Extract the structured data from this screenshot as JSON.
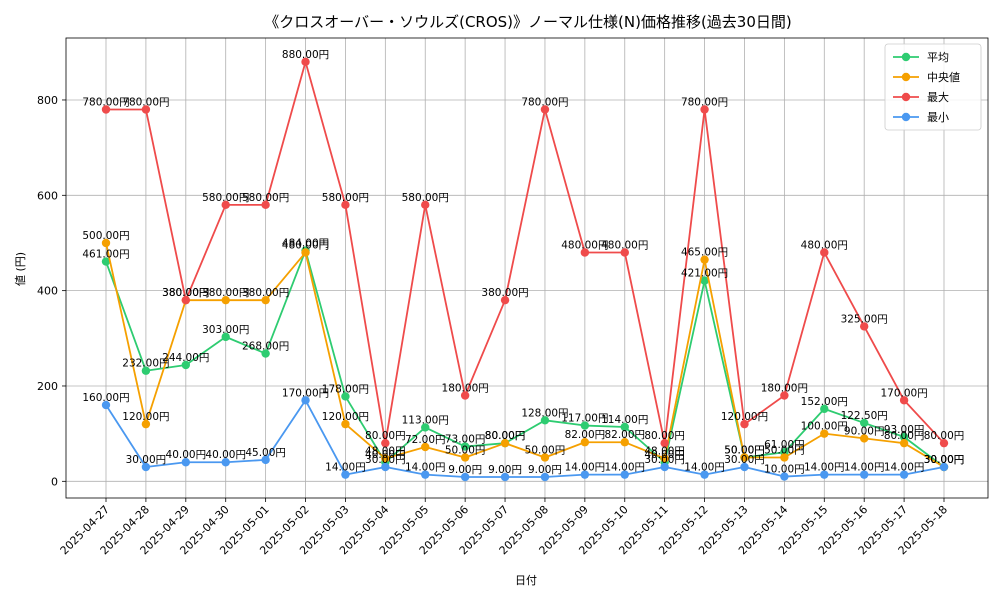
{
  "chart_data": {
    "type": "line",
    "title": "《クロスオーバー・ソウルズ(CROS)》ノーマル仕様(N)価格推移(過去30日間)",
    "xlabel": "日付",
    "ylabel": "値 (円)",
    "ylim": [
      -35,
      930
    ],
    "yticks": [
      0,
      200,
      400,
      600,
      800
    ],
    "grid": true,
    "legend_position": "top-right",
    "label_suffix": "円",
    "categories": [
      "2025-04-27",
      "2025-04-28",
      "2025-04-29",
      "2025-04-30",
      "2025-05-01",
      "2025-05-02",
      "2025-05-03",
      "2025-05-04",
      "2025-05-05",
      "2025-05-06",
      "2025-05-07",
      "2025-05-08",
      "2025-05-09",
      "2025-05-10",
      "2025-05-11",
      "2025-05-12",
      "2025-05-13",
      "2025-05-14",
      "2025-05-15",
      "2025-05-16",
      "2025-05-17",
      "2025-05-18"
    ],
    "series": [
      {
        "name": "平均",
        "color": "#2ecc71",
        "values": [
          461,
          232,
          244,
          303,
          268,
          484,
          178,
          40,
          113,
          73,
          80,
          128,
          117,
          114,
          40,
          421,
          50,
          61,
          152,
          122.5,
          93,
          30
        ]
      },
      {
        "name": "中央値",
        "color": "#f5a000",
        "values": [
          500,
          120,
          380,
          380,
          380,
          480,
          120,
          48,
          72,
          50,
          80,
          50,
          82,
          82,
          48,
          465,
          50,
          50,
          100,
          90,
          80,
          30
        ]
      },
      {
        "name": "最大",
        "color": "#ef4b4b",
        "values": [
          780,
          780,
          380,
          580,
          580,
          880,
          580,
          80,
          580,
          180,
          380,
          780,
          480,
          480,
          80,
          780,
          120,
          180,
          480,
          325,
          170,
          80
        ]
      },
      {
        "name": "最小",
        "color": "#4a98f0",
        "values": [
          160,
          30,
          40,
          40,
          45,
          170,
          14,
          30,
          14,
          9,
          9,
          9,
          14,
          14,
          30,
          14,
          30,
          10,
          14,
          14,
          14,
          30
        ]
      }
    ]
  }
}
